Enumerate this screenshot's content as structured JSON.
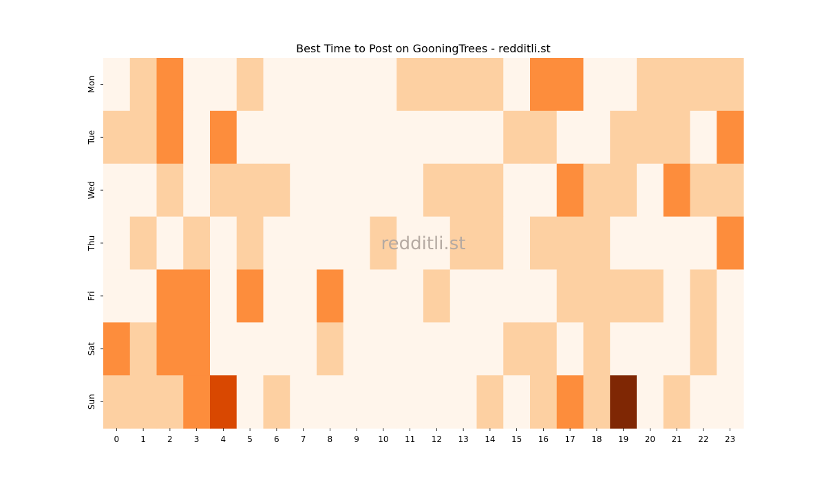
{
  "chart_data": {
    "type": "heatmap",
    "title": "Best Time to Post on GooningTrees - redditli.st",
    "watermark": "redditli.st",
    "x": [
      "0",
      "1",
      "2",
      "3",
      "4",
      "5",
      "6",
      "7",
      "8",
      "9",
      "10",
      "11",
      "12",
      "13",
      "14",
      "15",
      "16",
      "17",
      "18",
      "19",
      "20",
      "21",
      "22",
      "23"
    ],
    "y": [
      "Mon",
      "Tue",
      "Wed",
      "Thu",
      "Fri",
      "Sat",
      "Sun"
    ],
    "xlabel": "",
    "ylabel": "",
    "colormap": "Oranges",
    "value_range": [
      0,
      4
    ],
    "level_colors": [
      "#fff5eb",
      "#fdd0a2",
      "#fd8d3c",
      "#d94801",
      "#7f2704"
    ],
    "values": [
      [
        0,
        1,
        2,
        0,
        0,
        1,
        0,
        0,
        0,
        0,
        0,
        1,
        1,
        1,
        1,
        0,
        2,
        2,
        0,
        0,
        1,
        1,
        1,
        1
      ],
      [
        1,
        1,
        2,
        0,
        2,
        0,
        0,
        0,
        0,
        0,
        0,
        0,
        0,
        0,
        0,
        1,
        1,
        0,
        0,
        1,
        1,
        1,
        0,
        2
      ],
      [
        0,
        0,
        1,
        0,
        1,
        1,
        1,
        0,
        0,
        0,
        0,
        0,
        1,
        1,
        1,
        0,
        0,
        2,
        1,
        1,
        0,
        2,
        1,
        1
      ],
      [
        0,
        1,
        0,
        1,
        0,
        1,
        0,
        0,
        0,
        0,
        1,
        0,
        0,
        1,
        1,
        0,
        1,
        1,
        1,
        0,
        0,
        0,
        0,
        2
      ],
      [
        0,
        0,
        2,
        2,
        0,
        2,
        0,
        0,
        2,
        0,
        0,
        0,
        1,
        0,
        0,
        0,
        0,
        1,
        1,
        1,
        1,
        0,
        1,
        0
      ],
      [
        2,
        1,
        2,
        2,
        0,
        0,
        0,
        0,
        1,
        0,
        0,
        0,
        0,
        0,
        0,
        1,
        1,
        0,
        1,
        0,
        0,
        0,
        1,
        0
      ],
      [
        1,
        1,
        1,
        2,
        3,
        0,
        1,
        0,
        0,
        0,
        0,
        0,
        0,
        0,
        1,
        0,
        1,
        2,
        1,
        4,
        0,
        1,
        0,
        0
      ]
    ],
    "grid": false,
    "legend": "none"
  }
}
